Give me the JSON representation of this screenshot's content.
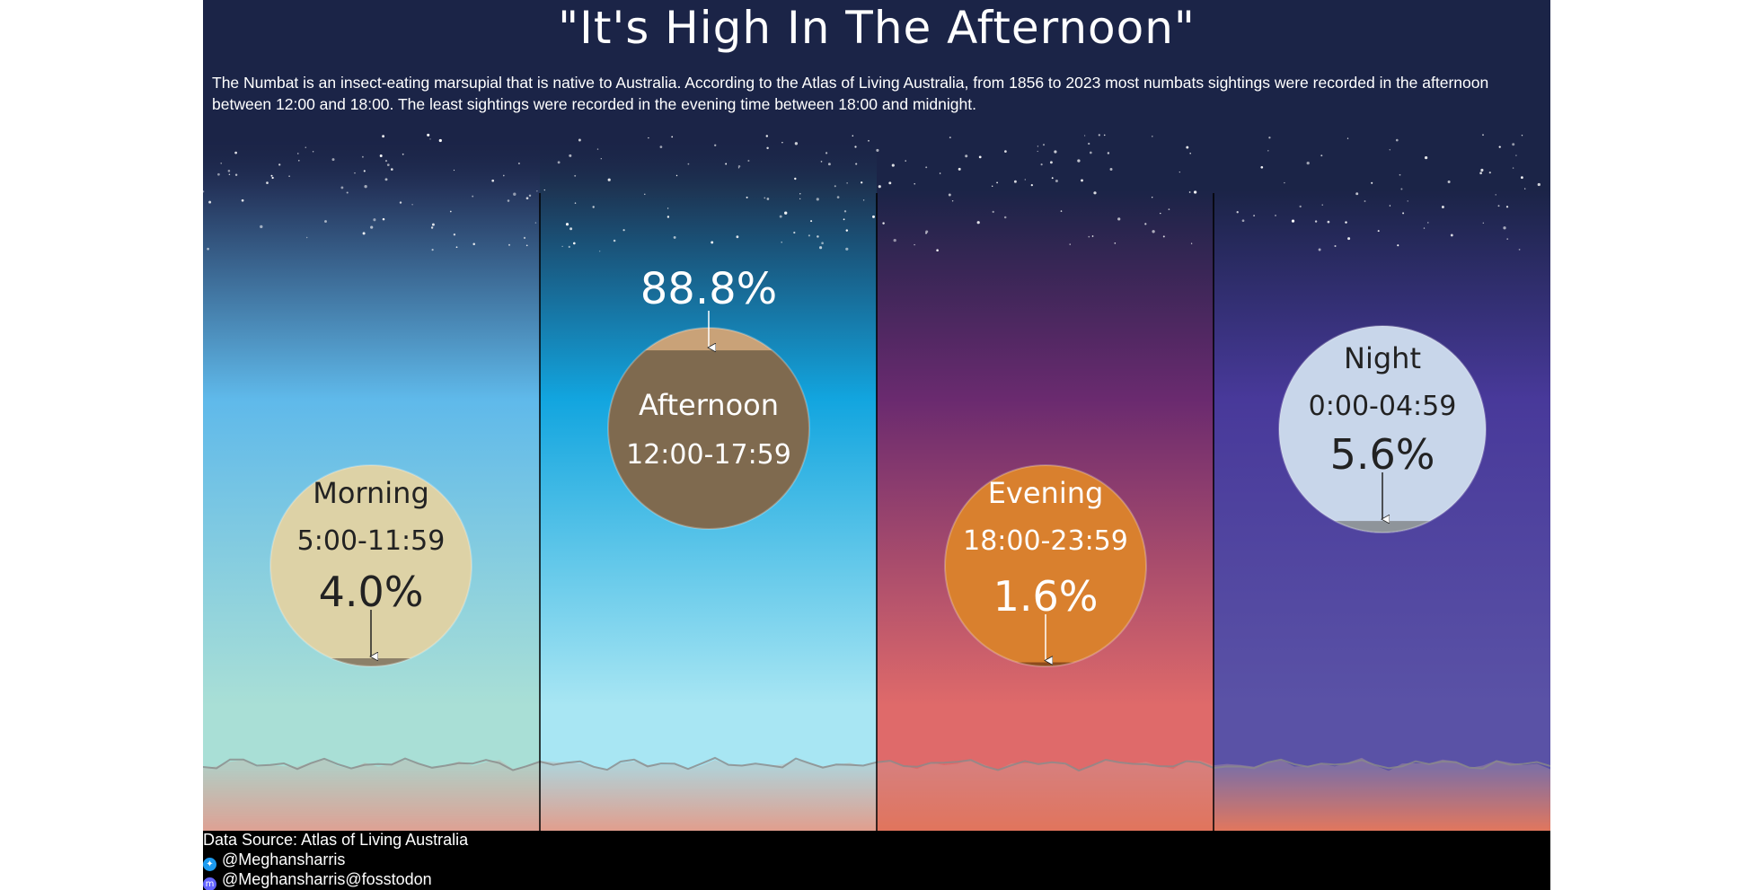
{
  "title": "\"It's High In The Afternoon\"",
  "subtitle": "The Numbat is an insect-eating marsupial that is native to Australia. According to the Atlas of Living Australia, from 1856 to 2023 most numbats sightings were recorded in the afternoon between 12:00 and 18:00. The least sightings were recorded in the evening time between 18:00 and midnight.",
  "chart_data": {
    "type": "pie",
    "unit": "%",
    "panels": [
      {
        "name": "Morning",
        "time": "5:00-11:59",
        "value": 4.0,
        "label": "4.0%",
        "circle_color": "#ddd2a6",
        "fill_color": "#8c8069",
        "text_color": "#222222",
        "sky_top": "#25355c",
        "sky_mid": "#5fb9ea",
        "sky_low": "#a9dfd6",
        "horizon": "#e99f8f"
      },
      {
        "name": "Afternoon",
        "time": "12:00-17:59",
        "value": 88.8,
        "label": "88.8%",
        "circle_color": "#c9a278",
        "fill_color": "#7f6a4f",
        "text_color": "#ffffff",
        "sky_top": "#1d3554",
        "sky_mid": "#12a5df",
        "sky_low": "#a8e6f3",
        "horizon": "#ee9a85"
      },
      {
        "name": "Evening",
        "time": "18:00-23:59",
        "value": 1.6,
        "label": "1.6%",
        "circle_color": "#d9802e",
        "fill_color": "#8c4a1c",
        "text_color": "#ffffff",
        "sky_top": "#1b2447",
        "sky_mid": "#6a2a6f",
        "sky_low": "#df6a6a",
        "horizon": "#ee5a3a"
      },
      {
        "name": "Night",
        "time": "0:00-04:59",
        "value": 5.6,
        "label": "5.6%",
        "circle_color": "#c8d6ea",
        "fill_color": "#8e949a",
        "text_color": "#222222",
        "sky_top": "#1b2447",
        "sky_mid": "#48399a",
        "sky_low": "#5a52a6",
        "horizon": "#ef5e3c"
      }
    ]
  },
  "footer": {
    "source": "Data Source:  Atlas of Living Australia",
    "twitter": "@Meghansharris",
    "mastodon": "@Meghansharris@fosstodon"
  },
  "icons": {
    "twitter": "twitter-icon",
    "mastodon": "mastodon-icon"
  },
  "colors": {
    "background": "#1b2447",
    "footer": "#000000",
    "twitter": "#1d9bf0",
    "mastodon": "#6364ff"
  }
}
